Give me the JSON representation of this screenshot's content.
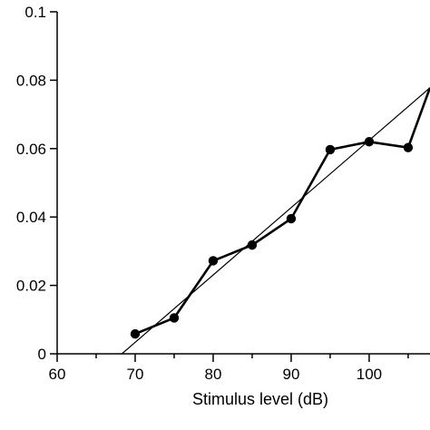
{
  "chart_data": {
    "type": "line",
    "title": "",
    "xlabel": "Stimulus level (dB)",
    "ylabel": "",
    "xlim": [
      60,
      107.8
    ],
    "ylim": [
      0,
      0.1
    ],
    "x_ticks": [
      60,
      70,
      80,
      90,
      100
    ],
    "x_tick_labels": [
      "60",
      "70",
      "80",
      "90",
      "100"
    ],
    "x_minor_ticks": [
      65,
      75,
      85,
      95,
      105
    ],
    "y_ticks": [
      0,
      0.02,
      0.04,
      0.06,
      0.08,
      0.1
    ],
    "y_tick_labels": [
      "0",
      "0.02",
      "0.04",
      "0.06",
      "0.08",
      "0.1"
    ],
    "grid": false,
    "series": [
      {
        "x": [
          70,
          75,
          80,
          85,
          90,
          95,
          100,
          105,
          107.8
        ],
        "y": [
          0.0058,
          0.0105,
          0.0272,
          0.0318,
          0.0395,
          0.0597,
          0.062,
          0.0603,
          0.0778
        ],
        "marker_count": 8,
        "line_color": "#000000"
      }
    ],
    "fit_line": {
      "x": [
        68.3,
        107.8
      ],
      "y": [
        0.0,
        0.0778
      ],
      "line_color": "#000000"
    }
  }
}
